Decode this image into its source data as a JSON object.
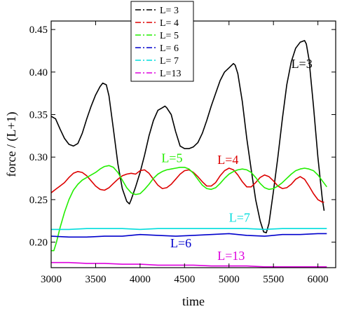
{
  "chart_data": {
    "type": "line",
    "xlabel": "time",
    "ylabel": "force / (L+1)",
    "xlim": [
      3000,
      6200
    ],
    "ylim": [
      0.17,
      0.46
    ],
    "x_ticks": [
      3000,
      3500,
      4000,
      4500,
      5000,
      5500,
      6000
    ],
    "x_tick_labels": [
      "3000",
      "3500",
      "4000",
      "4500",
      "5000",
      "5500",
      "6000"
    ],
    "y_ticks": [
      0.2,
      0.25,
      0.3,
      0.35,
      0.4,
      0.45
    ],
    "y_tick_labels": [
      "0.20",
      "0.25",
      "0.30",
      "0.35",
      "0.40",
      "0.45"
    ],
    "grid": false,
    "legend_position": "top-left, inside plot",
    "series": [
      {
        "name": "L= 3",
        "color": "#000000",
        "x": [
          3000,
          3050,
          3100,
          3150,
          3200,
          3250,
          3300,
          3350,
          3400,
          3450,
          3500,
          3550,
          3580,
          3620,
          3650,
          3700,
          3750,
          3800,
          3850,
          3880,
          3900,
          3950,
          4000,
          4050,
          4100,
          4150,
          4200,
          4250,
          4280,
          4300,
          4350,
          4400,
          4450,
          4500,
          4550,
          4600,
          4650,
          4700,
          4750,
          4800,
          4850,
          4900,
          4950,
          5000,
          5050,
          5070,
          5100,
          5150,
          5200,
          5250,
          5300,
          5350,
          5390,
          5420,
          5450,
          5500,
          5550,
          5600,
          5650,
          5700,
          5750,
          5800,
          5850,
          5870,
          5900,
          5950,
          6000,
          6050,
          6070
        ],
        "values": [
          0.348,
          0.345,
          0.333,
          0.322,
          0.315,
          0.313,
          0.316,
          0.328,
          0.345,
          0.36,
          0.373,
          0.383,
          0.387,
          0.385,
          0.372,
          0.333,
          0.292,
          0.263,
          0.248,
          0.245,
          0.25,
          0.265,
          0.282,
          0.302,
          0.325,
          0.343,
          0.355,
          0.358,
          0.36,
          0.358,
          0.35,
          0.33,
          0.313,
          0.31,
          0.31,
          0.312,
          0.317,
          0.328,
          0.343,
          0.36,
          0.375,
          0.39,
          0.4,
          0.405,
          0.41,
          0.408,
          0.398,
          0.365,
          0.322,
          0.285,
          0.25,
          0.225,
          0.212,
          0.211,
          0.222,
          0.26,
          0.3,
          0.345,
          0.385,
          0.412,
          0.428,
          0.435,
          0.437,
          0.433,
          0.415,
          0.36,
          0.3,
          0.25,
          0.237
        ]
      },
      {
        "name": "L= 4",
        "color": "#dd0000",
        "x": [
          3000,
          3050,
          3100,
          3150,
          3200,
          3250,
          3300,
          3350,
          3400,
          3450,
          3500,
          3550,
          3600,
          3650,
          3700,
          3750,
          3800,
          3850,
          3900,
          3950,
          4000,
          4050,
          4100,
          4150,
          4200,
          4250,
          4300,
          4350,
          4400,
          4450,
          4500,
          4550,
          4600,
          4650,
          4700,
          4750,
          4800,
          4850,
          4900,
          4950,
          5000,
          5050,
          5100,
          5150,
          5200,
          5250,
          5300,
          5350,
          5400,
          5450,
          5500,
          5550,
          5600,
          5650,
          5700,
          5750,
          5800,
          5850,
          5900,
          5950,
          6000,
          6050,
          6070
        ],
        "values": [
          0.258,
          0.262,
          0.266,
          0.27,
          0.276,
          0.281,
          0.283,
          0.282,
          0.278,
          0.272,
          0.266,
          0.262,
          0.261,
          0.264,
          0.269,
          0.274,
          0.278,
          0.28,
          0.281,
          0.28,
          0.284,
          0.285,
          0.281,
          0.274,
          0.267,
          0.263,
          0.264,
          0.268,
          0.274,
          0.28,
          0.284,
          0.285,
          0.282,
          0.277,
          0.271,
          0.266,
          0.266,
          0.27,
          0.278,
          0.284,
          0.287,
          0.285,
          0.279,
          0.271,
          0.265,
          0.265,
          0.27,
          0.276,
          0.279,
          0.277,
          0.272,
          0.266,
          0.263,
          0.264,
          0.268,
          0.274,
          0.277,
          0.274,
          0.266,
          0.257,
          0.25,
          0.247,
          0.247
        ]
      },
      {
        "name": "L= 5",
        "color": "#22ee00",
        "x": [
          3000,
          3030,
          3060,
          3100,
          3150,
          3200,
          3250,
          3300,
          3350,
          3400,
          3450,
          3500,
          3550,
          3600,
          3650,
          3700,
          3750,
          3800,
          3850,
          3900,
          3950,
          4000,
          4050,
          4100,
          4150,
          4200,
          4250,
          4300,
          4350,
          4400,
          4450,
          4500,
          4550,
          4600,
          4650,
          4700,
          4750,
          4800,
          4850,
          4900,
          4950,
          5000,
          5050,
          5100,
          5150,
          5200,
          5250,
          5300,
          5350,
          5400,
          5450,
          5500,
          5550,
          5600,
          5650,
          5700,
          5750,
          5800,
          5850,
          5900,
          5950,
          6000,
          6050,
          6100
        ],
        "values": [
          0.19,
          0.19,
          0.2,
          0.217,
          0.235,
          0.25,
          0.261,
          0.268,
          0.273,
          0.276,
          0.279,
          0.282,
          0.286,
          0.289,
          0.29,
          0.288,
          0.282,
          0.273,
          0.264,
          0.258,
          0.256,
          0.257,
          0.262,
          0.268,
          0.275,
          0.28,
          0.283,
          0.285,
          0.286,
          0.287,
          0.288,
          0.288,
          0.286,
          0.281,
          0.274,
          0.267,
          0.263,
          0.262,
          0.264,
          0.269,
          0.275,
          0.28,
          0.283,
          0.285,
          0.286,
          0.285,
          0.282,
          0.276,
          0.269,
          0.264,
          0.262,
          0.263,
          0.266,
          0.27,
          0.275,
          0.28,
          0.284,
          0.286,
          0.287,
          0.286,
          0.284,
          0.279,
          0.272,
          0.265
        ]
      },
      {
        "name": "L= 6",
        "color": "#0000cc",
        "x": [
          3000,
          3200,
          3400,
          3600,
          3800,
          4000,
          4200,
          4400,
          4600,
          4800,
          5000,
          5200,
          5400,
          5600,
          5800,
          6000,
          6100
        ],
        "values": [
          0.207,
          0.206,
          0.206,
          0.207,
          0.207,
          0.209,
          0.208,
          0.207,
          0.208,
          0.209,
          0.21,
          0.208,
          0.207,
          0.209,
          0.209,
          0.21,
          0.21
        ]
      },
      {
        "name": "L= 7",
        "color": "#00dddd",
        "x": [
          3000,
          3200,
          3400,
          3600,
          3800,
          4000,
          4200,
          4400,
          4600,
          4800,
          5000,
          5200,
          5400,
          5600,
          5800,
          6000,
          6100
        ],
        "values": [
          0.215,
          0.215,
          0.216,
          0.216,
          0.216,
          0.215,
          0.216,
          0.216,
          0.216,
          0.216,
          0.216,
          0.216,
          0.215,
          0.216,
          0.216,
          0.216,
          0.216
        ]
      },
      {
        "name": "L=13",
        "color": "#dd00dd",
        "x": [
          3000,
          3200,
          3400,
          3600,
          3800,
          4000,
          4200,
          4400,
          4600,
          4800,
          5000,
          5200,
          5400,
          5600,
          5800,
          6000,
          6100
        ],
        "values": [
          0.176,
          0.176,
          0.175,
          0.175,
          0.174,
          0.174,
          0.173,
          0.173,
          0.173,
          0.172,
          0.172,
          0.172,
          0.171,
          0.171,
          0.171,
          0.171,
          0.171
        ]
      }
    ],
    "annotations": [
      {
        "text": "L=3",
        "x": 5700,
        "y": 0.405,
        "color": "#000000"
      },
      {
        "text": "L=4",
        "x": 4870,
        "y": 0.292,
        "color": "#dd0000"
      },
      {
        "text": "L=5",
        "x": 4240,
        "y": 0.294,
        "color": "#22ee00"
      },
      {
        "text": "L=7",
        "x": 5000,
        "y": 0.224,
        "color": "#00dddd"
      },
      {
        "text": "L=6",
        "x": 4340,
        "y": 0.194,
        "color": "#0000cc"
      },
      {
        "text": "L=13",
        "x": 4870,
        "y": 0.179,
        "color": "#dd00dd"
      }
    ]
  }
}
